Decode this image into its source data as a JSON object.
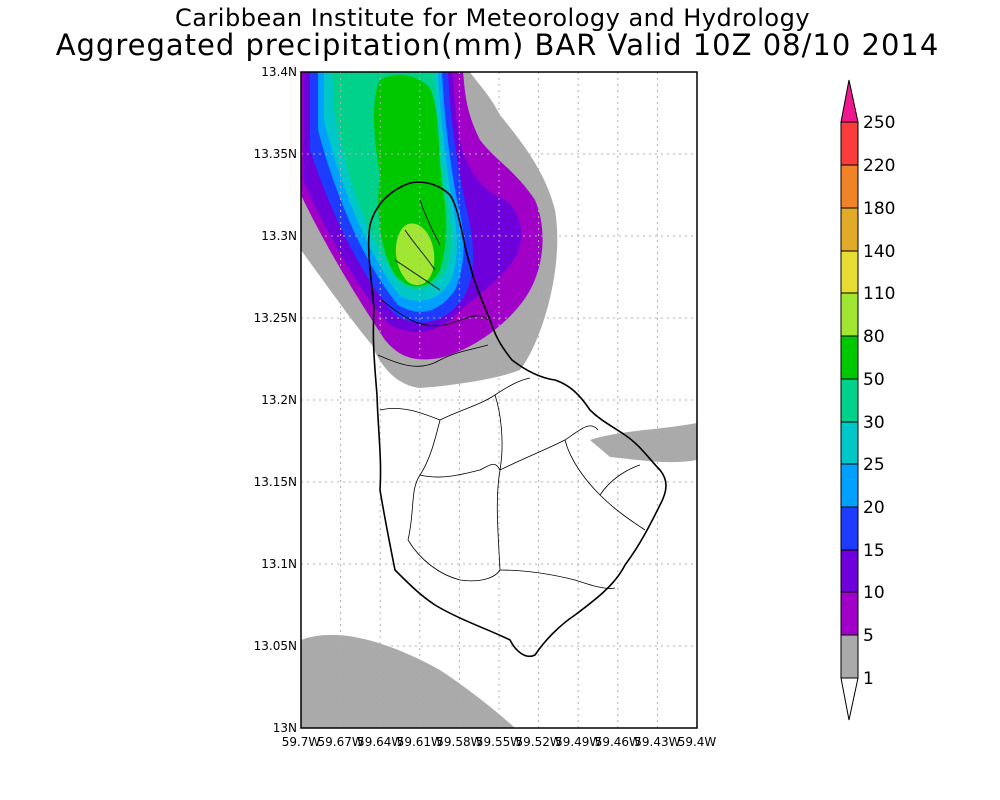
{
  "header": {
    "institution": "Caribbean Institute for Meteorology and Hydrology",
    "product_title": "Aggregated precipitation(mm) BAR Valid 10Z 08/10 2014"
  },
  "map": {
    "region": "Barbados",
    "lat_labels": [
      "13.4N",
      "13.35N",
      "13.3N",
      "13.25N",
      "13.2N",
      "13.15N",
      "13.1N",
      "13.05N",
      "13N"
    ],
    "lon_labels": [
      "59.7W",
      "59.67W",
      "59.64W",
      "59.61W",
      "59.58W",
      "59.55W",
      "59.52W",
      "59.49W",
      "59.46W",
      "59.43W",
      "59.4W"
    ],
    "grid": true
  },
  "colorbar": {
    "levels": [
      "250",
      "220",
      "180",
      "140",
      "110",
      "80",
      "50",
      "30",
      "25",
      "20",
      "15",
      "10",
      "5",
      "1"
    ],
    "colors": [
      "#f01890",
      "#fa3c3c",
      "#f08228",
      "#e1aa28",
      "#e6dc32",
      "#a0e632",
      "#00c800",
      "#00d28c",
      "#00c8c8",
      "#00a0ff",
      "#1e3cff",
      "#6e00dc",
      "#a000c8",
      "#aaaaaa",
      "#ffffff"
    ]
  }
}
